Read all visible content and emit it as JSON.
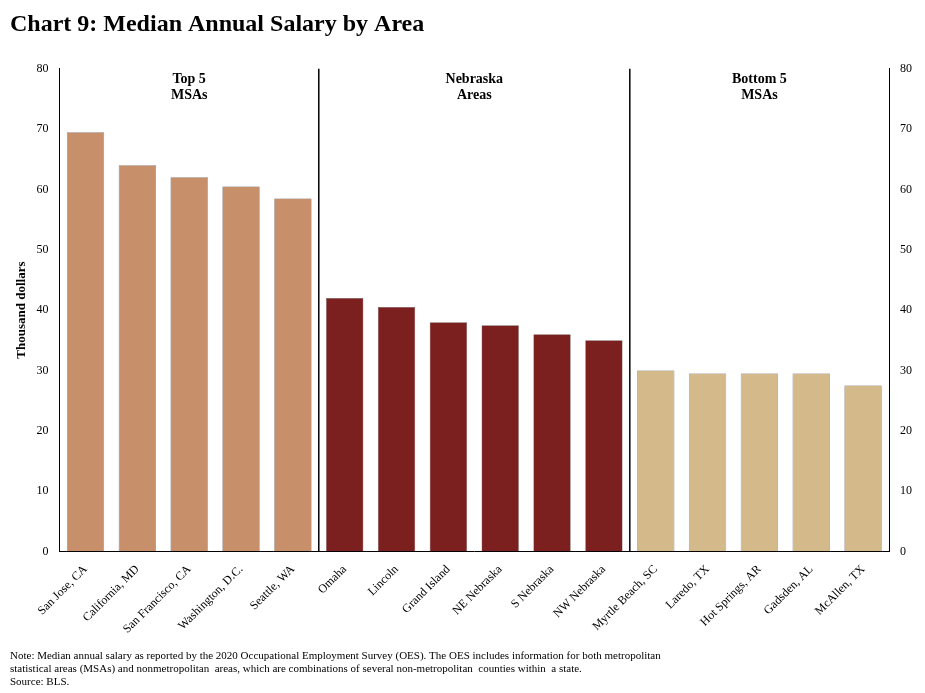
{
  "chart_data": {
    "type": "bar",
    "title": "Chart 9: Median Annual Salary by Area",
    "y_label": "Thousand dollars",
    "categories": [
      "San Jose, CA",
      "California, MD",
      "San Francisco, CA",
      "Washington, D.C.",
      "Seattle, WA",
      "Omaha",
      "Lincoln",
      "Grand Island",
      "NE Nebraska",
      "S Nebraska",
      "NW Nebraska",
      "Myrtle Beach, SC",
      "Laredo, TX",
      "Hot Springs, AR",
      "Gadsden, AL",
      "McAllen, TX"
    ],
    "values": [
      69.5,
      64.0,
      62.0,
      60.5,
      58.5,
      42.0,
      40.5,
      38.0,
      37.5,
      36.0,
      35.0,
      30.0,
      29.5,
      29.5,
      29.5,
      27.5
    ],
    "colors": [
      "#C8906A",
      "#C8906A",
      "#C8906A",
      "#C8906A",
      "#C8906A",
      "#7B1F1F",
      "#7B1F1F",
      "#7B1F1F",
      "#7B1F1F",
      "#7B1F1F",
      "#7B1F1F",
      "#D4BA8A",
      "#D4BA8A",
      "#D4BA8A",
      "#D4BA8A",
      "#D4BA8A"
    ],
    "ylim": [
      0,
      80
    ],
    "yticks": [
      0,
      10,
      20,
      30,
      40,
      50,
      60,
      70,
      80
    ],
    "y2lim": [
      0,
      80
    ],
    "y2ticks": [
      0,
      10,
      20,
      30,
      40,
      50,
      60,
      70,
      80
    ],
    "annotations": [
      "Top 5\nMSAs",
      "Nebraska\nAreas",
      "Bottom 5\nMSAs"
    ],
    "note": [
      "Note: Median annual salary as reported by the 2020 Occupational Employment Survey (OES). The OES includes information for both metropolitan",
      "statistical areas (MSAs) and nonmetropolitan  areas, which are combinations of several non-metropolitan  counties within  a state.",
      "Source: BLS."
    ],
    "grid": false,
    "legend": false
  }
}
